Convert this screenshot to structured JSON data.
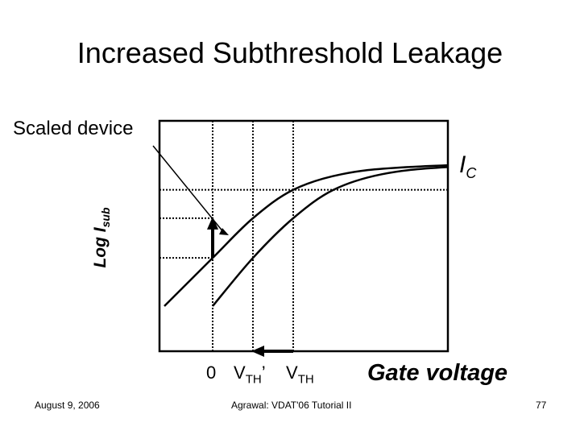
{
  "title": "Increased Subthreshold Leakage",
  "annotations": {
    "scaled_device": "Scaled device",
    "ic_label": "I",
    "ic_sub": "C"
  },
  "axes": {
    "ylabel_main": "Log I",
    "ylabel_sub": "sub",
    "xlabel": "Gate voltage",
    "x_ticks": {
      "zero": "0",
      "vth_prime_main": "V",
      "vth_prime_sub": "TH",
      "vth_prime_mark": "’",
      "vth_main": "V",
      "vth_sub": "TH"
    }
  },
  "footer": {
    "date": "August 9, 2006",
    "center": "Agrawal: VDAT'06 Tutorial II",
    "page": "77"
  },
  "chart_data": {
    "type": "line",
    "title": "Increased Subthreshold Leakage",
    "xlabel": "Gate voltage",
    "ylabel": "Log Isub",
    "grid": false,
    "series": [
      {
        "name": "Scaled device",
        "color": "#000000",
        "points": [
          [
            -0.3,
            0.0
          ],
          [
            0.0,
            0.34
          ],
          [
            0.25,
            0.62
          ],
          [
            0.5,
            0.82
          ],
          [
            0.8,
            0.93
          ],
          [
            1.2,
            0.98
          ],
          [
            2.1,
            1.02
          ]
        ]
      },
      {
        "color": "#000000",
        "points": [
          [
            0.0,
            0.0
          ],
          [
            0.25,
            0.34
          ],
          [
            0.5,
            0.62
          ],
          [
            0.75,
            0.82
          ],
          [
            1.05,
            0.93
          ],
          [
            1.45,
            0.98
          ],
          [
            2.1,
            1.0
          ]
        ]
      }
    ],
    "x_ticks": [
      "0",
      "VTH'",
      "VTH"
    ],
    "x_tick_values": [
      0.0,
      0.25,
      0.5
    ],
    "reference_levels": {
      "ic": 0.82,
      "leak_scaled": 0.62,
      "leak_original": 0.34
    },
    "xlim": [
      -0.3,
      2.1
    ],
    "ylim": [
      -0.2,
      1.05
    ]
  }
}
